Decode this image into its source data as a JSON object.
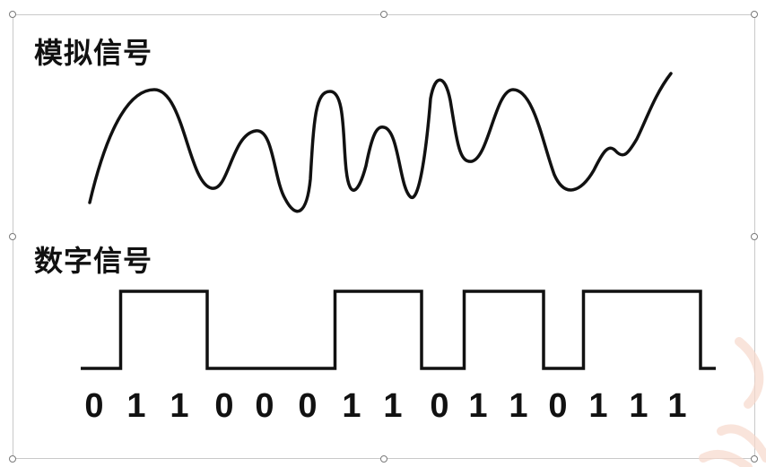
{
  "diagram": {
    "analog": {
      "title": "模拟信号"
    },
    "digital": {
      "title": "数字信号",
      "bits": [
        "0",
        "1",
        "1",
        "0",
        "0",
        "0",
        "1",
        "1",
        "0",
        "1",
        "1",
        "0",
        "1",
        "1",
        "1"
      ]
    }
  },
  "colors": {
    "stroke": "#111111",
    "frame": "#c9c9c9",
    "watermark": "#f6d9cc"
  }
}
